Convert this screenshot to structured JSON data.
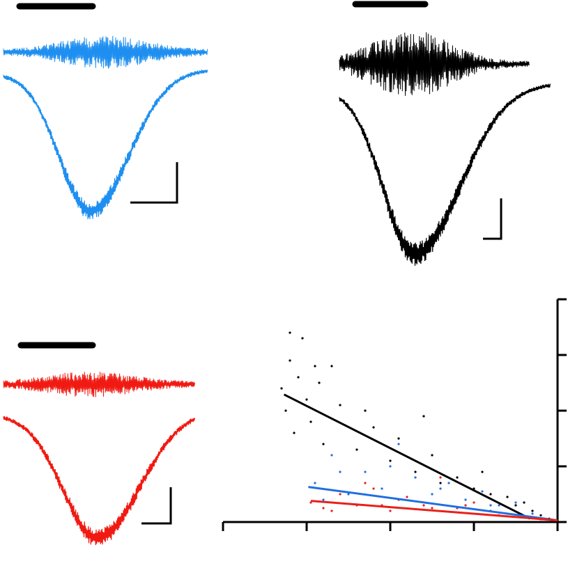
{
  "chart_data": {
    "type": "scatter",
    "xlim": [
      -4,
      0
    ],
    "ylim": [
      0,
      4
    ],
    "xticks": [
      -4,
      -3,
      -2,
      -1,
      0
    ],
    "yticks": [
      0,
      1,
      2,
      3,
      4
    ],
    "series": [
      {
        "color": "#000000",
        "x": [
          -3.3,
          -3.25,
          -3.2,
          -3.15,
          -3.1,
          -3.05,
          -3.0,
          -2.95,
          -2.9,
          -2.85,
          -2.8,
          -2.6,
          -2.4,
          -2.2,
          -2.0,
          -1.9,
          -1.7,
          -1.5,
          -1.4,
          -1.2,
          -1.0,
          -0.9,
          -0.8,
          -0.6,
          -0.5,
          -0.4,
          -0.3,
          -0.2,
          -0.1,
          -3.2,
          -2.7,
          -2.3,
          -1.6
        ],
        "values": [
          2.4,
          2.0,
          2.9,
          1.6,
          2.6,
          3.3,
          2.2,
          1.8,
          2.8,
          2.5,
          1.4,
          2.1,
          1.3,
          1.7,
          1.1,
          1.5,
          0.9,
          1.2,
          0.7,
          0.8,
          0.6,
          0.9,
          0.5,
          0.45,
          0.3,
          0.35,
          0.2,
          0.12,
          0.06,
          3.4,
          2.8,
          2.0,
          1.9
        ]
      },
      {
        "color": "#1f6fe0",
        "x": [
          -2.9,
          -2.7,
          -2.5,
          -2.3,
          -2.1,
          -1.9,
          -1.7,
          -1.5,
          -1.3,
          -1.1,
          -0.9,
          -0.7,
          -0.5,
          -0.3,
          -0.1,
          -2.6,
          -2.0,
          -1.4,
          -0.8,
          -2.8
        ],
        "values": [
          0.7,
          1.2,
          0.5,
          0.9,
          0.6,
          1.4,
          0.8,
          0.5,
          0.7,
          0.4,
          0.55,
          0.3,
          0.35,
          0.15,
          0.05,
          0.9,
          1.0,
          0.6,
          0.3,
          0.4
        ]
      },
      {
        "color": "#e8201a",
        "x": [
          -2.95,
          -2.8,
          -2.6,
          -2.4,
          -2.2,
          -2.0,
          -1.8,
          -1.6,
          -1.4,
          -1.2,
          -1.0,
          -0.8,
          -0.6,
          -0.4,
          -0.2,
          -2.7,
          -2.3,
          -1.9,
          -1.5,
          -1.1,
          -0.7,
          -2.1
        ],
        "values": [
          0.35,
          0.25,
          0.5,
          0.3,
          0.6,
          0.2,
          0.45,
          0.3,
          0.8,
          0.25,
          0.35,
          0.2,
          0.15,
          0.1,
          0.05,
          0.2,
          0.7,
          0.4,
          0.25,
          0.3,
          0.12,
          0.3
        ]
      }
    ],
    "fits": [
      {
        "color": "#000000",
        "x": [
          -3.27,
          -0.33
        ],
        "values": [
          2.29,
          0.06
        ]
      },
      {
        "color": "#1f6fe0",
        "x": [
          -2.98,
          0
        ],
        "values": [
          0.63,
          0.03
        ]
      },
      {
        "color": "#e8201a",
        "x": [
          -2.95,
          0
        ],
        "values": [
          0.38,
          0.03
        ]
      }
    ]
  }
}
